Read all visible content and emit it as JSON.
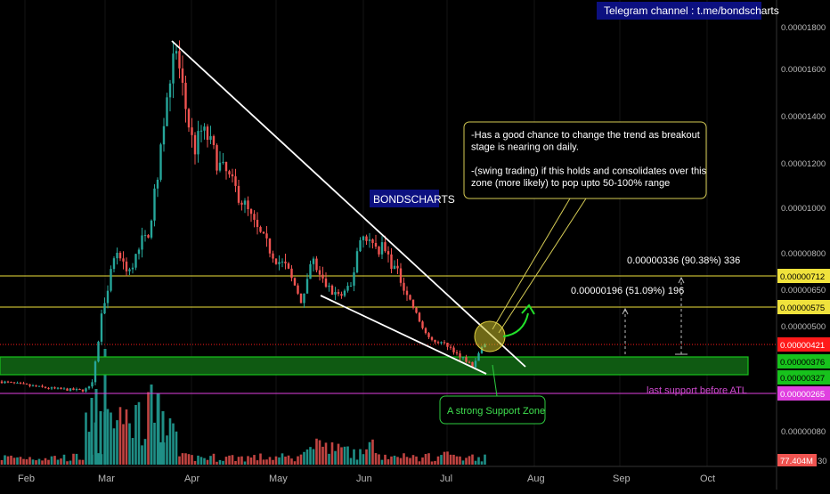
{
  "header": {
    "telegram": "Telegram channel  : t.me/bondscharts"
  },
  "watermark": "BONDSCHARTS",
  "annotations": {
    "note_lines": [
      "-Has a good chance to change the trend as breakout",
      "stage is nearing on daily.",
      "",
      "  -(swing trading) if this holds and consolidates over this",
      "zone (more likely) to pop upto 50-100% range"
    ],
    "support_zone_label": "A strong Support Zone",
    "last_support_label": "last support before ATL",
    "measure_upper": "0.00000336 (90.38%) 336",
    "measure_lower": "0.00000196 (51.09%) 196"
  },
  "colors": {
    "background": "#000000",
    "up": "#26a69a",
    "down": "#ef5350",
    "level_yellow": "#f0e23c",
    "current_price": "#ff1a1a",
    "support_green": "#17c21c",
    "last_support": "#e040e0",
    "watermark_bg": "#0c1080",
    "trendline": "#ffffff"
  },
  "price_axis": {
    "ticks": [
      "0.00001800",
      "0.00001600",
      "0.00001400",
      "0.00001200",
      "0.00001000",
      "0.00000800",
      "0.00000650",
      "0.00000500",
      "0.00000080"
    ],
    "badges": [
      {
        "text": "0.00000712",
        "color": "yellow"
      },
      {
        "text": "0.00000575",
        "color": "yellow"
      },
      {
        "text": "0.00000421",
        "color": "red"
      },
      {
        "text": "0.00000376",
        "color": "green"
      },
      {
        "text": "0.00000327",
        "color": "green"
      },
      {
        "text": "0.00000265",
        "color": "magenta"
      }
    ],
    "volume_badge": "77.404M",
    "volume_suffix": "30"
  },
  "time_axis": [
    "Feb",
    "Mar",
    "Apr",
    "May",
    "Jun",
    "Jul",
    "Aug",
    "Sep",
    "Oct"
  ],
  "chart_data": {
    "type": "candlestick",
    "log_scale": true,
    "levels": {
      "resistance_upper": 7.12e-06,
      "resistance_lower": 5.75e-06,
      "current_price": 4.21e-06,
      "support_zone_top": 3.76e-06,
      "support_zone_bottom": 3.27e-06,
      "last_support": 2.65e-06
    },
    "peak_price": 1.74e-05,
    "peak_month": "Apr",
    "volume_last": "77.404M"
  }
}
